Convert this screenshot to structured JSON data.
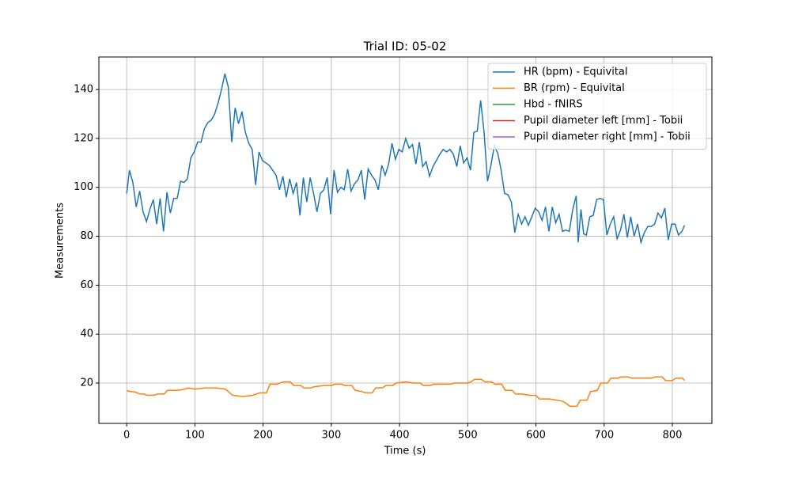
{
  "chart_data": {
    "type": "line",
    "title": "Trial ID: 05-02",
    "x_label": "Time (s)",
    "y_label": "Measurements",
    "xlim": [
      -40.8,
      858
    ],
    "ylim": [
      3.5,
      153.3
    ],
    "xticks": [
      0,
      100,
      200,
      300,
      400,
      500,
      600,
      700,
      800
    ],
    "yticks": [
      20,
      40,
      60,
      80,
      100,
      120,
      140
    ],
    "grid": true,
    "legend": "upper right",
    "series": [
      {
        "name": "HR (bpm) - Equivital",
        "color": "#1f77b4",
        "x": [
          0,
          4,
          9,
          14,
          19,
          24,
          29,
          34,
          39,
          44,
          49,
          54,
          59,
          64,
          69,
          74,
          79,
          84,
          89,
          94,
          99,
          104,
          109,
          114,
          119,
          124,
          129,
          134,
          139,
          144,
          149,
          154,
          159,
          164,
          169,
          174,
          179,
          184,
          189,
          194,
          199,
          204,
          209,
          214,
          219,
          224,
          229,
          234,
          239,
          244,
          249,
          254,
          259,
          264,
          269,
          274,
          279,
          284,
          289,
          294,
          299,
          304,
          309,
          314,
          319,
          324,
          329,
          334,
          339,
          344,
          349,
          354,
          359,
          364,
          369,
          374,
          379,
          384,
          389,
          394,
          399,
          404,
          409,
          414,
          419,
          424,
          429,
          434,
          439,
          444,
          449,
          454,
          459,
          464,
          469,
          474,
          479,
          484,
          489,
          494,
          499,
          504,
          509,
          514,
          519,
          524,
          529,
          534,
          539,
          544,
          549,
          554,
          559,
          564,
          569,
          574,
          579,
          584,
          589,
          594,
          599,
          604,
          609,
          614,
          619,
          624,
          629,
          634,
          639,
          644,
          649,
          654,
          659,
          662,
          666,
          670,
          674,
          679,
          684,
          689,
          694,
          699,
          704,
          709,
          714,
          719,
          724,
          729,
          734,
          739,
          744,
          749,
          754,
          759,
          764,
          769,
          774,
          779,
          784,
          789,
          794,
          799,
          804,
          809,
          814,
          818
        ],
        "values": [
          97.5,
          107,
          102,
          92,
          98.5,
          90,
          86,
          91,
          95,
          85,
          95.5,
          82,
          98,
          89.5,
          95.5,
          95.5,
          102.5,
          102,
          103.5,
          112,
          114.5,
          118.5,
          118.5,
          124,
          126.5,
          127.5,
          130,
          134.5,
          140,
          146.5,
          141,
          118.5,
          132.5,
          126,
          131,
          122.5,
          118,
          115.5,
          101,
          114.5,
          111,
          110,
          109,
          107,
          105,
          99,
          104.5,
          96,
          103.5,
          97.5,
          102,
          88.5,
          104,
          94,
          104,
          97.5,
          90,
          97.5,
          99,
          104,
          89,
          107,
          98,
          100,
          99,
          107.5,
          98.5,
          101.5,
          103,
          107,
          95,
          107.5,
          105,
          103,
          99,
          109,
          105,
          109.5,
          118,
          111.5,
          115.5,
          114.5,
          120,
          116,
          117.5,
          109.5,
          118.5,
          108.5,
          110.5,
          104.5,
          108.5,
          111,
          113.5,
          115.5,
          114.5,
          115.5,
          113.5,
          108.5,
          117,
          110,
          112,
          107,
          122.5,
          123,
          135.5,
          122.5,
          102.5,
          109,
          117,
          114,
          107,
          97.5,
          97,
          94,
          81.5,
          89,
          85,
          88,
          84.5,
          88,
          91.5,
          90,
          86.5,
          92,
          82,
          92,
          85.5,
          89,
          82,
          82.5,
          82,
          91,
          96.5,
          77.5,
          91,
          81,
          80.5,
          88,
          88.5,
          95,
          95.5,
          95,
          80.5,
          85,
          88,
          79,
          82.5,
          89,
          79.5,
          88,
          80,
          85,
          77.5,
          81.5,
          84,
          84,
          85,
          89.5,
          87.5,
          91.5,
          78.5,
          85,
          85,
          80.5,
          82,
          84.5
        ]
      },
      {
        "name": "BR (rpm) - Equivital",
        "color": "#ff7f0e",
        "x": [
          0,
          5,
          10,
          15,
          20,
          25,
          30,
          40,
          45,
          55,
          60,
          75,
          85,
          90,
          100,
          115,
          130,
          145,
          155,
          170,
          185,
          195,
          205,
          210,
          220,
          230,
          240,
          245,
          255,
          260,
          270,
          275,
          290,
          300,
          305,
          315,
          320,
          330,
          335,
          345,
          350,
          360,
          365,
          375,
          380,
          390,
          395,
          410,
          420,
          430,
          435,
          445,
          450,
          475,
          480,
          500,
          505,
          510,
          520,
          525,
          535,
          540,
          550,
          555,
          565,
          570,
          580,
          590,
          600,
          605,
          620,
          630,
          640,
          650,
          660,
          665,
          675,
          680,
          690,
          695,
          705,
          710,
          720,
          725,
          735,
          740,
          770,
          775,
          785,
          790,
          800,
          805,
          815,
          818
        ],
        "values": [
          17,
          16.5,
          16.5,
          16,
          15.5,
          15.5,
          15,
          15,
          15.5,
          15.5,
          17,
          17,
          17.5,
          18,
          17.5,
          18,
          18,
          17.5,
          15,
          14.5,
          15,
          16,
          16,
          19.5,
          19.5,
          20.5,
          20.5,
          19,
          19,
          18,
          18,
          18.5,
          19,
          19,
          19.5,
          19.5,
          19,
          19,
          17,
          16.5,
          16,
          16,
          18,
          18,
          19,
          19,
          20,
          20.5,
          20,
          20,
          19,
          19,
          19.5,
          19.5,
          20,
          20,
          20.5,
          21.5,
          21.5,
          20.5,
          20.5,
          19.5,
          19.5,
          17,
          17,
          15.5,
          15.5,
          15,
          15,
          13.5,
          13.5,
          13,
          12.5,
          10.5,
          10.5,
          13,
          13,
          16.5,
          17,
          20,
          20,
          22,
          22,
          22.5,
          22.5,
          22,
          22,
          22.5,
          22.5,
          21,
          21,
          22,
          22,
          21
        ]
      },
      {
        "name": "Hbd - fNIRS",
        "color": "#2ca02c",
        "x": [],
        "values": []
      },
      {
        "name": "Pupil diameter left [mm] - Tobii",
        "color": "#d62728",
        "x": [],
        "values": []
      },
      {
        "name": "Pupil diameter right [mm] - Tobii",
        "color": "#9467bd",
        "x": [],
        "values": []
      }
    ]
  }
}
